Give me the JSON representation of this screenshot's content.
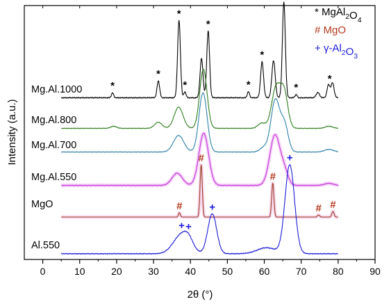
{
  "chart_data": {
    "type": "line",
    "xlabel": "2θ (°)",
    "ylabel": "Intensity (a.u.)",
    "xlim": [
      -5,
      90
    ],
    "x_ticks": [
      "0",
      "10",
      "20",
      "30",
      "40",
      "50",
      "60",
      "70",
      "80",
      "90"
    ],
    "x_range_measured": [
      5,
      80
    ],
    "y_ticks_shown": false,
    "grid": false,
    "legend_position": "top-right",
    "legend": [
      {
        "symbol": "*",
        "label": "MgAl2O4",
        "color": "#000000"
      },
      {
        "symbol": "#",
        "label": "MgO",
        "color": "#b23a1e"
      },
      {
        "symbol": "+",
        "label": "γ-Al2O3",
        "color": "#1a1adb"
      }
    ],
    "series": [
      {
        "name": "Mg.Al.1000",
        "color": "#000000",
        "halo": null,
        "baseline": 0.1,
        "noise": 0.35,
        "peaks": [
          [
            18.9,
            0.28,
            0.3
          ],
          [
            31.3,
            0.97,
            0.35
          ],
          [
            36.9,
            4.45,
            0.38
          ],
          [
            38.5,
            0.35,
            0.3
          ],
          [
            43.0,
            2.25,
            0.4
          ],
          [
            44.8,
            3.85,
            0.38
          ],
          [
            55.7,
            0.35,
            0.3
          ],
          [
            59.4,
            2.05,
            0.4
          ],
          [
            62.5,
            2.15,
            0.45
          ],
          [
            65.3,
            5.5,
            0.4
          ],
          [
            68.6,
            0.18,
            0.3
          ],
          [
            74.5,
            0.3,
            0.45
          ],
          [
            77.4,
            0.75,
            0.4
          ],
          [
            78.5,
            0.85,
            0.4
          ]
        ]
      },
      {
        "name": "Mg.Al.800",
        "color": "#2e7d1e",
        "halo": null,
        "baseline": 0.1,
        "noise": 0.2,
        "peaks": [
          [
            19.2,
            0.12,
            0.8
          ],
          [
            31.3,
            0.35,
            1.0
          ],
          [
            36.8,
            1.22,
            1.2
          ],
          [
            43.5,
            3.4,
            1.0
          ],
          [
            59.3,
            0.3,
            1.0
          ],
          [
            63.2,
            2.35,
            1.2
          ],
          [
            65.4,
            1.95,
            1.0
          ],
          [
            77.5,
            0.12,
            1.0
          ]
        ]
      },
      {
        "name": "Mg.Al.700",
        "color": "#2c7fa8",
        "halo": null,
        "baseline": 0.1,
        "noise": 0.2,
        "peaks": [
          [
            36.8,
            0.95,
            1.4
          ],
          [
            43.4,
            3.4,
            1.1
          ],
          [
            59.8,
            0.25,
            1.0
          ],
          [
            63.0,
            3.0,
            1.2
          ],
          [
            65.5,
            1.5,
            1.0
          ],
          [
            77.5,
            0.15,
            1.2
          ]
        ]
      },
      {
        "name": "Mg.Al.550",
        "color": "#c22fd6",
        "halo": "#f2c2f7",
        "baseline": 0.1,
        "noise": 0.2,
        "peaks": [
          [
            36.4,
            0.7,
            1.4
          ],
          [
            43.6,
            3.0,
            1.3
          ],
          [
            62.9,
            2.9,
            1.4
          ],
          [
            65.5,
            0.7,
            1.0
          ],
          [
            77.5,
            0.12,
            1.2
          ]
        ]
      },
      {
        "name": "MgO",
        "color": "#9b3a1e",
        "halo": "#f4c8e8",
        "baseline": 0.0,
        "noise": 0.0,
        "peaks": [
          [
            37.0,
            0.25,
            0.25
          ],
          [
            42.9,
            3.0,
            0.3
          ],
          [
            62.3,
            1.95,
            0.3
          ],
          [
            74.7,
            0.12,
            0.3
          ],
          [
            78.6,
            0.32,
            0.3
          ]
        ]
      },
      {
        "name": "Al.550",
        "color": "#1a1ad6",
        "halo": null,
        "baseline": 0.05,
        "noise": 0.3,
        "peaks": [
          [
            37.6,
            1.1,
            2.2
          ],
          [
            39.5,
            0.4,
            1.2
          ],
          [
            45.9,
            2.3,
            1.2
          ],
          [
            60.6,
            0.35,
            2.5
          ],
          [
            66.9,
            5.1,
            1.3
          ]
        ]
      }
    ],
    "markers": [
      {
        "symbol": "*",
        "color": "#000000",
        "x": 18.9,
        "series": "Mg.Al.1000"
      },
      {
        "symbol": "*",
        "color": "#000000",
        "x": 31.3,
        "series": "Mg.Al.1000"
      },
      {
        "symbol": "*",
        "color": "#000000",
        "x": 36.9,
        "series": "Mg.Al.1000"
      },
      {
        "symbol": "*",
        "color": "#000000",
        "x": 38.5,
        "series": "Mg.Al.1000"
      },
      {
        "symbol": "*",
        "color": "#000000",
        "x": 44.8,
        "series": "Mg.Al.1000"
      },
      {
        "symbol": "*",
        "color": "#000000",
        "x": 55.7,
        "series": "Mg.Al.1000"
      },
      {
        "symbol": "*",
        "color": "#000000",
        "x": 59.4,
        "series": "Mg.Al.1000"
      },
      {
        "symbol": "*",
        "color": "#000000",
        "x": 65.3,
        "series": "Mg.Al.1000"
      },
      {
        "symbol": "*",
        "color": "#000000",
        "x": 68.6,
        "series": "Mg.Al.1000"
      },
      {
        "symbol": "*",
        "color": "#000000",
        "x": 77.7,
        "series": "Mg.Al.1000"
      },
      {
        "symbol": "#",
        "color": "#b23a1e",
        "x": 37.0,
        "series": "MgO"
      },
      {
        "symbol": "#",
        "color": "#b23a1e",
        "x": 42.9,
        "series": "MgO"
      },
      {
        "symbol": "#",
        "color": "#b23a1e",
        "x": 62.3,
        "series": "MgO"
      },
      {
        "symbol": "#",
        "color": "#b23a1e",
        "x": 74.7,
        "series": "MgO"
      },
      {
        "symbol": "#",
        "color": "#b23a1e",
        "x": 78.6,
        "series": "MgO"
      },
      {
        "symbol": "+",
        "color": "#1a1adb",
        "x": 37.6,
        "series": "Al.550"
      },
      {
        "symbol": "+",
        "color": "#1a1adb",
        "x": 39.5,
        "series": "Al.550"
      },
      {
        "symbol": "+",
        "color": "#1a1adb",
        "x": 45.9,
        "series": "Al.550"
      },
      {
        "symbol": "+",
        "color": "#1a1adb",
        "x": 66.9,
        "series": "Al.550"
      }
    ]
  }
}
